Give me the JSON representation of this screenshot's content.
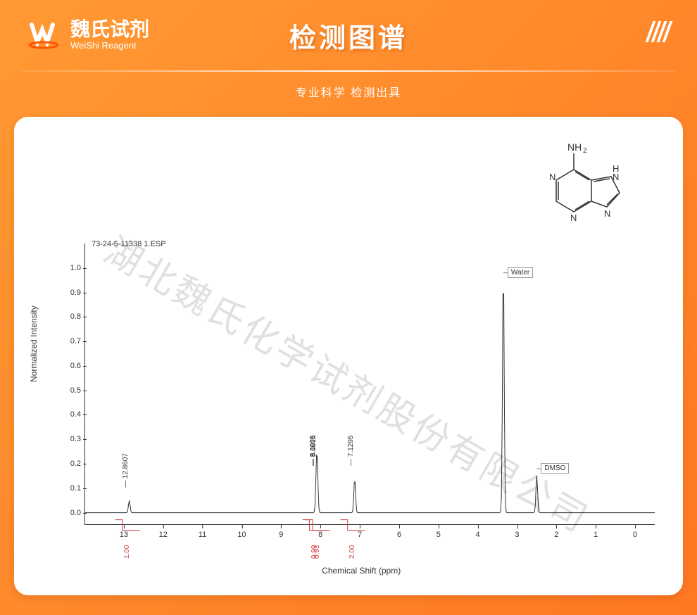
{
  "brand": {
    "name_cn": "魏氏试剂",
    "name_en": "WeiShi Reagent"
  },
  "header": {
    "title": "检测图谱",
    "subtitle": "专业科学 检测出具"
  },
  "watermark": "湖北魏氏化学试剂股份有限公司",
  "chart": {
    "type": "nmr-spectrum",
    "sample_id": "73-24-5-11338 1.ESP",
    "ylabel": "Normalized Intensity",
    "xlabel": "Chemical Shift (ppm)",
    "background_color": "#ffffff",
    "axis_color": "#333333",
    "peak_color": "#333333",
    "integral_color": "#d04040",
    "label_fontsize": 12,
    "tick_fontsize": 11,
    "peak_label_fontsize": 10,
    "xlim": [
      14,
      -0.5
    ],
    "ylim": [
      -0.05,
      1.1
    ],
    "yticks": [
      0,
      0.1,
      0.2,
      0.3,
      0.4,
      0.5,
      0.6,
      0.7,
      0.8,
      0.9,
      1.0
    ],
    "xticks": [
      13,
      12,
      11,
      10,
      9,
      8,
      7,
      6,
      5,
      4,
      3,
      2,
      1,
      0
    ],
    "peaks": [
      {
        "ppm": 12.8607,
        "intensity": 0.05,
        "label": "12.8607"
      },
      {
        "ppm": 8.1005,
        "intensity": 0.14,
        "label": "8.1005"
      },
      {
        "ppm": 8.0816,
        "intensity": 0.14,
        "label": "8.0816"
      },
      {
        "ppm": 7.1295,
        "intensity": 0.14,
        "label": "7.1295"
      },
      {
        "ppm": 3.35,
        "intensity": 1.0,
        "label": ""
      },
      {
        "ppm": 2.5,
        "intensity": 0.15,
        "label": ""
      }
    ],
    "integrals": [
      {
        "ppm": 12.86,
        "value": "1.00"
      },
      {
        "ppm": 8.1,
        "value": "0.99"
      },
      {
        "ppm": 8.02,
        "value": "0.93"
      },
      {
        "ppm": 7.13,
        "value": "2.00"
      }
    ],
    "solvent_labels": [
      {
        "ppm": 3.35,
        "text": "Water",
        "y": 0.98
      },
      {
        "ppm": 2.5,
        "text": "DMSO",
        "y": 0.18
      }
    ],
    "molecule": {
      "labels": [
        "NH₂",
        "H",
        "N",
        "N",
        "N",
        "N"
      ]
    }
  },
  "colors": {
    "bg_gradient_start": "#ff9933",
    "bg_gradient_end": "#ff7722",
    "card_bg": "#ffffff",
    "text_white": "#ffffff"
  }
}
